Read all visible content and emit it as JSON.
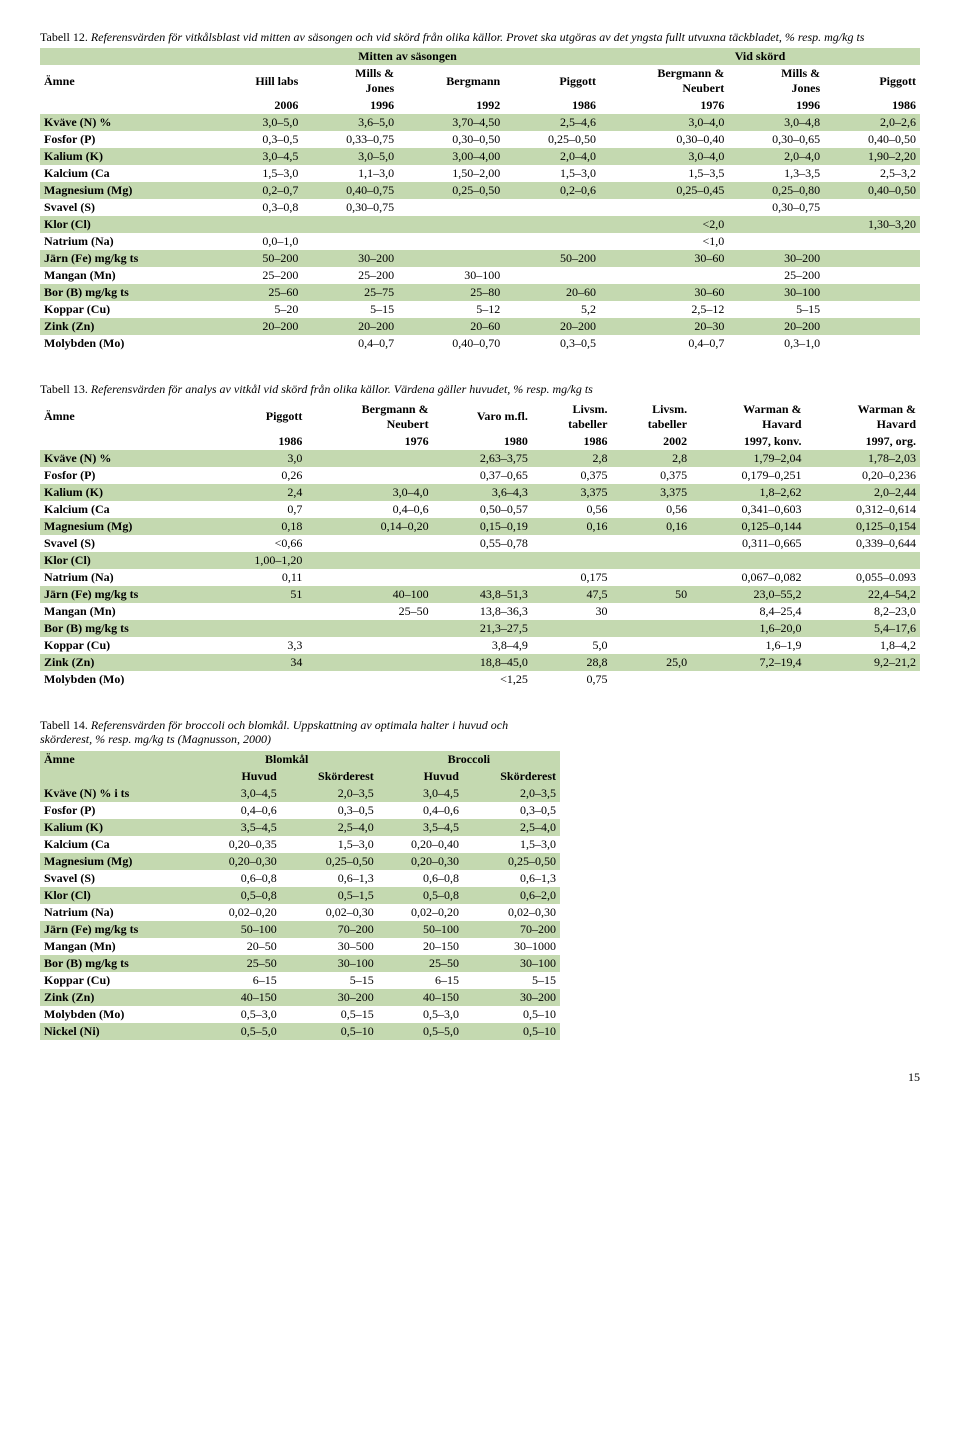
{
  "table12": {
    "caption_lead": "Tabell 12.",
    "caption_rest": " Referensvärden för vitkålsblast vid mitten av säsongen och vid skörd från olika källor. Provet ska utgöras av det yngsta fullt utvuxna täckbladet, % resp. mg/kg ts",
    "group_mitten": "Mitten av säsongen",
    "group_skord": "Vid skörd",
    "col_amne": "Ämne",
    "headers_top": [
      "Hill labs",
      "Mills & Jones",
      "Bergmann",
      "Piggott",
      "Bergmann & Neubert",
      "Mills & Jones",
      "Piggott"
    ],
    "headers_year": [
      "2006",
      "1996",
      "1992",
      "1986",
      "1976",
      "1996",
      "1986"
    ],
    "rows": [
      {
        "label": "Kväve (N) %",
        "v": [
          "3,0–5,0",
          "3,6–5,0",
          "3,70–4,50",
          "2,5–4,6",
          "3,0–4,0",
          "3,0–4,8",
          "2,0–2,6"
        ],
        "g": true
      },
      {
        "label": "Fosfor (P)",
        "v": [
          "0,3–0,5",
          "0,33–0,75",
          "0,30–0,50",
          "0,25–0,50",
          "0,30–0,40",
          "0,30–0,65",
          "0,40–0,50"
        ],
        "g": false
      },
      {
        "label": "Kalium (K)",
        "v": [
          "3,0–4,5",
          "3,0–5,0",
          "3,00–4,00",
          "2,0–4,0",
          "3,0–4,0",
          "2,0–4,0",
          "1,90–2,20"
        ],
        "g": true
      },
      {
        "label": "Kalcium (Ca",
        "v": [
          "1,5–3,0",
          "1,1–3,0",
          "1,50–2,00",
          "1,5–3,0",
          "1,5–3,5",
          "1,3–3,5",
          "2,5–3,2"
        ],
        "g": false
      },
      {
        "label": "Magnesium (Mg)",
        "v": [
          "0,2–0,7",
          "0,40–0,75",
          "0,25–0,50",
          "0,2–0,6",
          "0,25–0,45",
          "0,25–0,80",
          "0,40–0,50"
        ],
        "g": true
      },
      {
        "label": "Svavel (S)",
        "v": [
          "0,3–0,8",
          "0,30–0,75",
          "",
          "",
          "",
          "0,30–0,75",
          ""
        ],
        "g": false
      },
      {
        "label": "Klor (Cl)",
        "v": [
          "",
          "",
          "",
          "",
          "<2,0",
          "",
          "1,30–3,20"
        ],
        "g": true,
        "span5": true
      },
      {
        "label": "Natrium (Na)",
        "v": [
          "0,0–1,0",
          "",
          "",
          "",
          "<1,0",
          "",
          ""
        ],
        "g": false,
        "span5b": true
      },
      {
        "label": "Järn (Fe) mg/kg ts",
        "v": [
          "50–200",
          "30–200",
          "",
          "50–200",
          "30–60",
          "30–200",
          ""
        ],
        "g": true,
        "span34": true
      },
      {
        "label": "Mangan (Mn)",
        "v": [
          "25–200",
          "25–200",
          "30–100",
          "",
          "",
          "25–200",
          ""
        ],
        "g": false
      },
      {
        "label": "Bor (B) mg/kg ts",
        "v": [
          "25–60",
          "25–75",
          "25–80",
          "20–60",
          "30–60",
          "30–100",
          ""
        ],
        "g": true
      },
      {
        "label": "Koppar (Cu)",
        "v": [
          "5–20",
          "5–15",
          "5–12",
          "5,2",
          "2,5–12",
          "5–15",
          ""
        ],
        "g": false
      },
      {
        "label": "Zink (Zn)",
        "v": [
          "20–200",
          "20–200",
          "20–60",
          "20–200",
          "20–30",
          "20–200",
          ""
        ],
        "g": true
      },
      {
        "label": "Molybden (Mo)",
        "v": [
          "",
          "0,4–0,7",
          "0,40–0,70",
          "0,3–0,5",
          "0,4–0,7",
          "0,3–1,0",
          ""
        ],
        "g": false
      }
    ]
  },
  "table13": {
    "caption_lead": "Tabell 13.",
    "caption_rest": " Referensvärden för analys av vitkål vid skörd från olika källor. Värdena gäller huvudet, % resp. mg/kg ts",
    "col_amne": "Ämne",
    "headers_top": [
      "Piggott",
      "Bergmann & Neubert",
      "Varo m.fl.",
      "Livsm. tabeller",
      "Livsm. tabeller",
      "Warman & Havard",
      "Warman & Havard"
    ],
    "headers_year": [
      "1986",
      "1976",
      "1980",
      "1986",
      "2002",
      "1997, konv.",
      "1997, org."
    ],
    "rows": [
      {
        "label": "Kväve (N) %",
        "v": [
          "3,0",
          "",
          "2,63–3,75",
          "2,8",
          "2,8",
          "1,79–2,04",
          "1,78–2,03"
        ],
        "g": true
      },
      {
        "label": "Fosfor (P)",
        "v": [
          "0,26",
          "",
          "0,37–0,65",
          "0,375",
          "0,375",
          "0,179–0,251",
          "0,20–0,236"
        ],
        "g": false
      },
      {
        "label": "Kalium (K)",
        "v": [
          "2,4",
          "3,0–4,0",
          "3,6–4,3",
          "3,375",
          "3,375",
          "1,8–2,62",
          "2,0–2,44"
        ],
        "g": true
      },
      {
        "label": "Kalcium (Ca",
        "v": [
          "0,7",
          "0,4–0,6",
          "0,50–0,57",
          "0,56",
          "0,56",
          "0,341–0,603",
          "0,312–0,614"
        ],
        "g": false
      },
      {
        "label": "Magnesium (Mg)",
        "v": [
          "0,18",
          "0,14–0,20",
          "0,15–0,19",
          "0,16",
          "0,16",
          "0,125–0,144",
          "0,125–0,154"
        ],
        "g": true
      },
      {
        "label": "Svavel (S)",
        "v": [
          "<0,66",
          "",
          "0,55–0,78",
          "",
          "",
          "0,311–0,665",
          "0,339–0,644"
        ],
        "g": false
      },
      {
        "label": "Klor (Cl)",
        "v": [
          "1,00–1,20",
          "",
          "",
          "",
          "",
          "",
          ""
        ],
        "g": true
      },
      {
        "label": "Natrium (Na)",
        "v": [
          "0,11",
          "",
          "",
          "0,175",
          "",
          "0,067–0,082",
          "0,055–0.093"
        ],
        "g": false
      },
      {
        "label": "Järn (Fe) mg/kg ts",
        "v": [
          "51",
          "40–100",
          "43,8–51,3",
          "47,5",
          "50",
          "23,0–55,2",
          "22,4–54,2"
        ],
        "g": true
      },
      {
        "label": "Mangan (Mn)",
        "v": [
          "",
          "25–50",
          "13,8–36,3",
          "30",
          "",
          "8,4–25,4",
          "8,2–23,0"
        ],
        "g": false
      },
      {
        "label": "Bor (B) mg/kg ts",
        "v": [
          "",
          "",
          "21,3–27,5",
          "",
          "",
          "1,6–20,0",
          "5,4–17,6"
        ],
        "g": true
      },
      {
        "label": "Koppar (Cu)",
        "v": [
          "3,3",
          "",
          "3,8–4,9",
          "5,0",
          "",
          "1,6–1,9",
          "1,8–4,2"
        ],
        "g": false
      },
      {
        "label": "Zink (Zn)",
        "v": [
          "34",
          "",
          "18,8–45,0",
          "28,8",
          "25,0",
          "7,2–19,4",
          "9,2–21,2"
        ],
        "g": true
      },
      {
        "label": "Molybden (Mo)",
        "v": [
          "",
          "",
          "<1,25",
          "0,75",
          "",
          "",
          ""
        ],
        "g": false
      }
    ]
  },
  "table14": {
    "caption_lead": "Tabell 14.",
    "caption_rest": " Referensvärden för broccoli och blomkål. Uppskattning av optimala halter i huvud och skörderest, % resp. mg/kg ts (Magnusson, 2000)",
    "col_amne": "Ämne",
    "group_blomkal": "Blomkål",
    "group_broccoli": "Broccoli",
    "sub_huvud": "Huvud",
    "sub_skorderest": "Skörderest",
    "rows": [
      {
        "label": "Kväve (N) % i ts",
        "v": [
          "3,0–4,5",
          "2,0–3,5",
          "3,0–4,5",
          "2,0–3,5"
        ],
        "g": true
      },
      {
        "label": "Fosfor (P)",
        "v": [
          "0,4–0,6",
          "0,3–0,5",
          "0,4–0,6",
          "0,3–0,5"
        ],
        "g": false
      },
      {
        "label": "Kalium (K)",
        "v": [
          "3,5–4,5",
          "2,5–4,0",
          "3,5–4,5",
          "2,5–4,0"
        ],
        "g": true
      },
      {
        "label": "Kalcium (Ca",
        "v": [
          "0,20–0,35",
          "1,5–3,0",
          "0,20–0,40",
          "1,5–3,0"
        ],
        "g": false
      },
      {
        "label": "Magnesium (Mg)",
        "v": [
          "0,20–0,30",
          "0,25–0,50",
          "0,20–0,30",
          "0,25–0,50"
        ],
        "g": true
      },
      {
        "label": "Svavel (S)",
        "v": [
          "0,6–0,8",
          "0,6–1,3",
          "0,6–0,8",
          "0,6–1,3"
        ],
        "g": false
      },
      {
        "label": "Klor (Cl)",
        "v": [
          "0,5–0,8",
          "0,5–1,5",
          "0,5–0,8",
          "0,6–2,0"
        ],
        "g": true
      },
      {
        "label": "Natrium (Na)",
        "v": [
          "0,02–0,20",
          "0,02–0,30",
          "0,02–0,20",
          "0,02–0,30"
        ],
        "g": false
      },
      {
        "label": "Järn (Fe) mg/kg ts",
        "v": [
          "50–100",
          "70–200",
          "50–100",
          "70–200"
        ],
        "g": true
      },
      {
        "label": "Mangan (Mn)",
        "v": [
          "20–50",
          "30–500",
          "20–150",
          "30–1000"
        ],
        "g": false
      },
      {
        "label": "Bor (B) mg/kg ts",
        "v": [
          "25–50",
          "30–100",
          "25–50",
          "30–100"
        ],
        "g": true
      },
      {
        "label": "Koppar (Cu)",
        "v": [
          "6–15",
          "5–15",
          "6–15",
          "5–15"
        ],
        "g": false
      },
      {
        "label": "Zink (Zn)",
        "v": [
          "40–150",
          "30–200",
          "40–150",
          "30–200"
        ],
        "g": true
      },
      {
        "label": "Molybden (Mo)",
        "v": [
          "0,5–3,0",
          "0,5–15",
          "0,5–3,0",
          "0,5–10"
        ],
        "g": false
      },
      {
        "label": "Nickel (Ni)",
        "v": [
          "0,5–5,0",
          "0,5–10",
          "0,5–5,0",
          "0,5–10"
        ],
        "g": true
      }
    ]
  },
  "pagenum": "15"
}
